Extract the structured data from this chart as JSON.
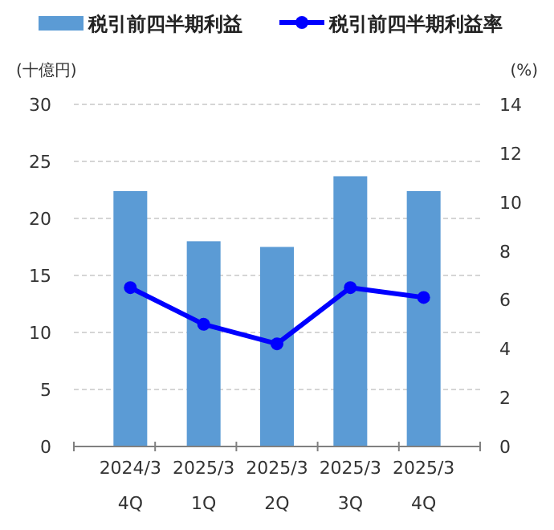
{
  "chart_data": {
    "type": "bar",
    "categories": [
      "2024/3\n4Q",
      "2025/3\n1Q",
      "2025/3\n2Q",
      "2025/3\n3Q",
      "2025/3\n4Q"
    ],
    "series": [
      {
        "name": "税引前四半期利益",
        "color": "#5b9bd5",
        "values": [
          22.4,
          18.0,
          17.5,
          23.7,
          22.4
        ]
      },
      {
        "name": "税引前四半期利益率",
        "type": "line",
        "axis": "y2",
        "color": "#0000ff",
        "values": [
          6.5,
          5.0,
          4.2,
          6.5,
          6.1
        ]
      }
    ],
    "ylabel": "(十億円)",
    "y2label": "(%)",
    "ylim": [
      0,
      30
    ],
    "yticks": [
      0,
      5,
      10,
      15,
      20,
      25,
      30
    ],
    "y2lim": [
      0,
      14
    ],
    "y2ticks": [
      0,
      2,
      4,
      6,
      8,
      10,
      12,
      14
    ],
    "grid": "y",
    "legend": "top",
    "marker": "circle"
  }
}
